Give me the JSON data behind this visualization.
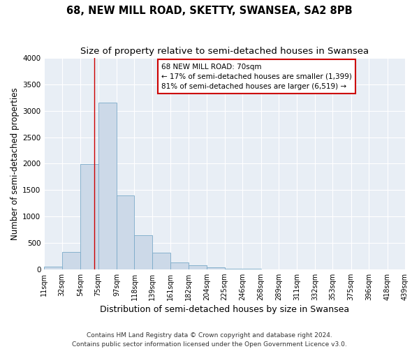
{
  "title": "68, NEW MILL ROAD, SKETTY, SWANSEA, SA2 8PB",
  "subtitle": "Size of property relative to semi-detached houses in Swansea",
  "xlabel": "Distribution of semi-detached houses by size in Swansea",
  "ylabel": "Number of semi-detached properties",
  "bar_color": "#ccd9e8",
  "bar_edge_color": "#7aaac8",
  "background_color": "#e8eef5",
  "grid_color": "#ffffff",
  "property_line_x": 70,
  "property_line_color": "#cc0000",
  "annotation_line1": "68 NEW MILL ROAD: 70sqm",
  "annotation_line2": "← 17% of semi-detached houses are smaller (1,399)",
  "annotation_line3": "81% of semi-detached houses are larger (6,519) →",
  "annotation_box_color": "#ffffff",
  "annotation_box_edge": "#cc0000",
  "bin_edges": [
    11,
    32,
    54,
    75,
    97,
    118,
    139,
    161,
    182,
    204,
    225,
    246,
    268,
    289,
    311,
    332,
    353,
    375,
    396,
    418,
    439
  ],
  "bin_heights": [
    50,
    320,
    1990,
    3160,
    1400,
    640,
    310,
    130,
    75,
    30,
    8,
    3,
    2,
    1,
    1,
    0,
    0,
    0,
    0,
    0
  ],
  "ylim": [
    0,
    4000
  ],
  "yticks": [
    0,
    500,
    1000,
    1500,
    2000,
    2500,
    3000,
    3500,
    4000
  ],
  "footer_line1": "Contains HM Land Registry data © Crown copyright and database right 2024.",
  "footer_line2": "Contains public sector information licensed under the Open Government Licence v3.0.",
  "fig_bg": "#ffffff"
}
